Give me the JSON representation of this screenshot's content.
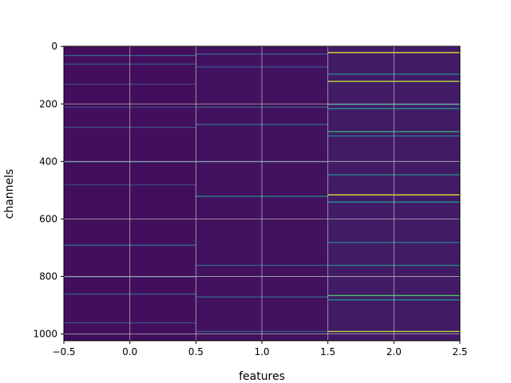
{
  "chart_data": {
    "type": "heatmap",
    "colormap": "viridis",
    "xlabel": "features",
    "ylabel": "channels",
    "xlim": [
      -0.5,
      2.5
    ],
    "ylim": [
      1023.5,
      -0.5
    ],
    "x_ticks": [
      -0.5,
      0.0,
      0.5,
      1.0,
      1.5,
      2.0,
      2.5
    ],
    "x_tick_labels": [
      "−0.5",
      "0.0",
      "0.5",
      "1.0",
      "1.5",
      "2.0",
      "2.5"
    ],
    "y_ticks": [
      0,
      200,
      400,
      600,
      800,
      1000
    ],
    "y_tick_labels": [
      "0",
      "200",
      "400",
      "600",
      "800",
      "1000"
    ],
    "grid": true,
    "columns": [
      {
        "feature": 0,
        "base_level": 0.04,
        "bands": [
          {
            "channel": 30,
            "value": 0.3
          },
          {
            "channel": 60,
            "value": 0.25
          },
          {
            "channel": 130,
            "value": 0.2
          },
          {
            "channel": 210,
            "value": 0.2
          },
          {
            "channel": 280,
            "value": 0.25
          },
          {
            "channel": 400,
            "value": 0.35
          },
          {
            "channel": 480,
            "value": 0.2
          },
          {
            "channel": 690,
            "value": 0.35
          },
          {
            "channel": 800,
            "value": 0.3
          },
          {
            "channel": 860,
            "value": 0.3
          },
          {
            "channel": 960,
            "value": 0.25
          }
        ]
      },
      {
        "feature": 1,
        "base_level": 0.05,
        "bands": [
          {
            "channel": 25,
            "value": 0.3
          },
          {
            "channel": 70,
            "value": 0.25
          },
          {
            "channel": 210,
            "value": 0.3
          },
          {
            "channel": 270,
            "value": 0.35
          },
          {
            "channel": 400,
            "value": 0.25
          },
          {
            "channel": 520,
            "value": 0.45
          },
          {
            "channel": 760,
            "value": 0.3
          },
          {
            "channel": 870,
            "value": 0.3
          },
          {
            "channel": 990,
            "value": 0.3
          }
        ]
      },
      {
        "feature": 2,
        "base_level": 0.08,
        "bands": [
          {
            "channel": 20,
            "value": 0.95
          },
          {
            "channel": 95,
            "value": 0.45
          },
          {
            "channel": 120,
            "value": 0.9
          },
          {
            "channel": 200,
            "value": 0.55
          },
          {
            "channel": 215,
            "value": 0.5
          },
          {
            "channel": 295,
            "value": 0.6
          },
          {
            "channel": 310,
            "value": 0.4
          },
          {
            "channel": 445,
            "value": 0.45
          },
          {
            "channel": 515,
            "value": 0.95
          },
          {
            "channel": 540,
            "value": 0.5
          },
          {
            "channel": 680,
            "value": 0.4
          },
          {
            "channel": 760,
            "value": 0.45
          },
          {
            "channel": 865,
            "value": 0.7
          },
          {
            "channel": 880,
            "value": 0.5
          },
          {
            "channel": 990,
            "value": 0.9
          }
        ]
      }
    ]
  }
}
